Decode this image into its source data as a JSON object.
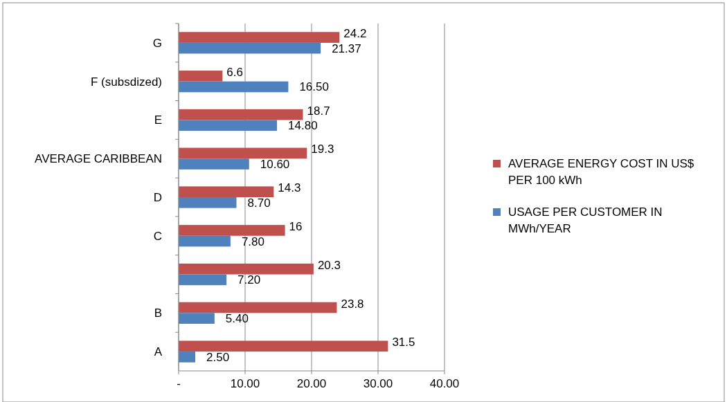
{
  "chart_data": {
    "type": "bar",
    "orientation": "horizontal",
    "categories": [
      "G",
      "F (subsdized)",
      "E",
      "AVERAGE CARIBBEAN",
      "D",
      "C",
      null,
      "B",
      "A"
    ],
    "series": [
      {
        "name": "AVERAGE ENERGY COST IN US$ PER 100 kWh",
        "color": "#c0504d",
        "values": [
          24.2,
          6.6,
          18.7,
          19.3,
          14.3,
          16,
          20.3,
          23.8,
          31.5
        ],
        "value_labels": [
          "24.2",
          "6.6",
          "18.7",
          "19.3",
          "14.3",
          "16",
          "20.3",
          "23.8",
          "31.5"
        ]
      },
      {
        "name": "USAGE PER CUSTOMER IN MWh/YEAR",
        "color": "#4f81bd",
        "values": [
          21.37,
          16.5,
          14.8,
          10.6,
          8.7,
          7.8,
          7.2,
          5.4,
          2.5
        ],
        "value_labels": [
          "21.37",
          "16.50",
          "14.80",
          "10.60",
          "8.70",
          "7.80",
          "7.20",
          "5.40",
          "2.50"
        ]
      }
    ],
    "xlim": [
      0,
      40
    ],
    "xticks": [
      {
        "value": 0,
        "label": "-"
      },
      {
        "value": 10,
        "label": "10.00"
      },
      {
        "value": 20,
        "label": "20.00"
      },
      {
        "value": 30,
        "label": "30.00"
      },
      {
        "value": 40,
        "label": "40.00"
      }
    ],
    "grid": "x",
    "legend": "right"
  }
}
